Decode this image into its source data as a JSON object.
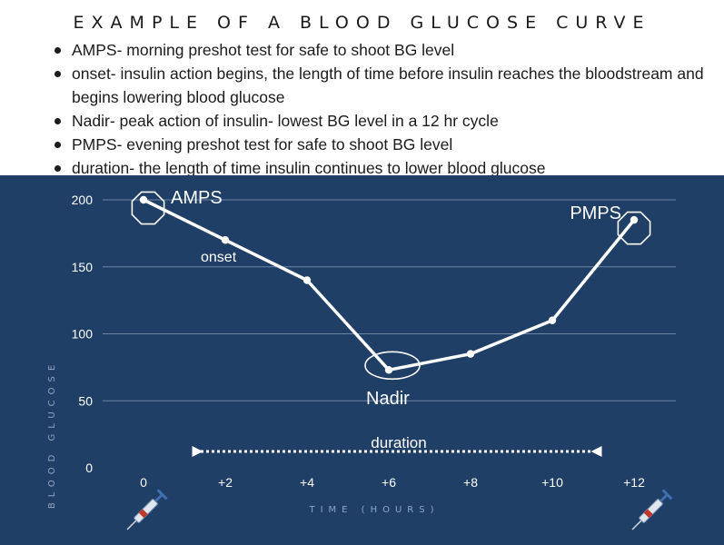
{
  "header": {
    "title": "EXAMPLE OF A BLOOD GLUCOSE CURVE",
    "bullets": [
      "AMPS- morning preshot test for safe to shoot BG level",
      "onset- insulin action begins, the length of time before insulin reaches the bloodstream and begins lowering blood glucose",
      "Nadir- peak action of insulin- lowest BG level in a 12 hr cycle",
      "PMPS- evening preshot test for safe to shoot BG level",
      "duration- the length of time insulin continues to lower blood glucose"
    ]
  },
  "colors": {
    "background": "#1f3f66",
    "line": "#ffffff",
    "grid": "#7f97b6"
  },
  "chart_data": {
    "type": "line",
    "title": "EXAMPLE OF A BLOOD GLUCOSE CURVE",
    "xlabel": "TIME (HOURS)",
    "ylabel": "BLOOD GLUCOSE",
    "categories": [
      "0",
      "+2",
      "+4",
      "+6",
      "+8",
      "+10",
      "+12"
    ],
    "x": [
      0,
      2,
      4,
      6,
      8,
      10,
      12
    ],
    "values": [
      200,
      170,
      140,
      73,
      85,
      110,
      185
    ],
    "yticks": [
      "0",
      "50",
      "100",
      "150",
      "200"
    ],
    "ylim": [
      0,
      200
    ],
    "grid": true,
    "annotations": {
      "amps": "AMPS",
      "onset": "onset",
      "nadir": "Nadir",
      "pmps": "PMPS",
      "duration": "duration"
    },
    "duration_range": [
      1.4,
      11
    ]
  }
}
